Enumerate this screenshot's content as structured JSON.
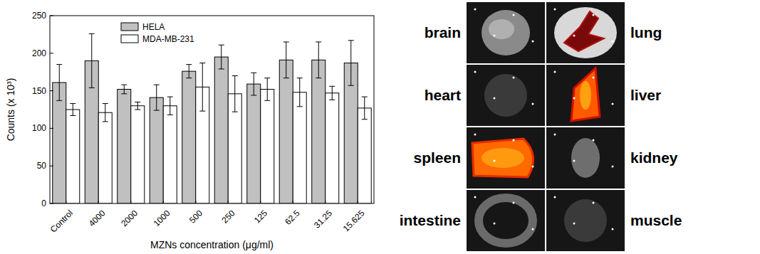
{
  "chart_data": {
    "type": "bar",
    "x_label": "MZNs concentration (μg/ml)",
    "y_label": "Counts (x 10³)",
    "categories": [
      "Control",
      "4000",
      "2000",
      "1000",
      "500",
      "250",
      "125",
      "62.5",
      "31.25",
      "15.625"
    ],
    "series": [
      {
        "name": "HELA",
        "color": "#c0c0c0",
        "values": [
          161,
          190,
          152,
          141,
          176,
          195,
          159,
          191,
          191,
          187
        ],
        "errors": [
          24,
          36,
          6,
          17,
          9,
          16,
          15,
          24,
          24,
          30
        ]
      },
      {
        "name": "MDA-MB-231",
        "color": "#ffffff",
        "values": [
          125,
          121,
          130,
          130,
          155,
          146,
          152,
          148,
          147,
          127
        ],
        "errors": [
          8,
          12,
          5,
          12,
          32,
          24,
          15,
          19,
          9,
          15
        ]
      }
    ],
    "ylim": [
      0,
      250
    ],
    "yticks": [
      0,
      50,
      100,
      150,
      200,
      250
    ],
    "legend": "upper left",
    "grid": false
  },
  "organ_images": {
    "left": [
      "brain",
      "heart",
      "spleen",
      "intestine"
    ],
    "right": [
      "lung",
      "liver",
      "kidney",
      "muscle"
    ]
  }
}
